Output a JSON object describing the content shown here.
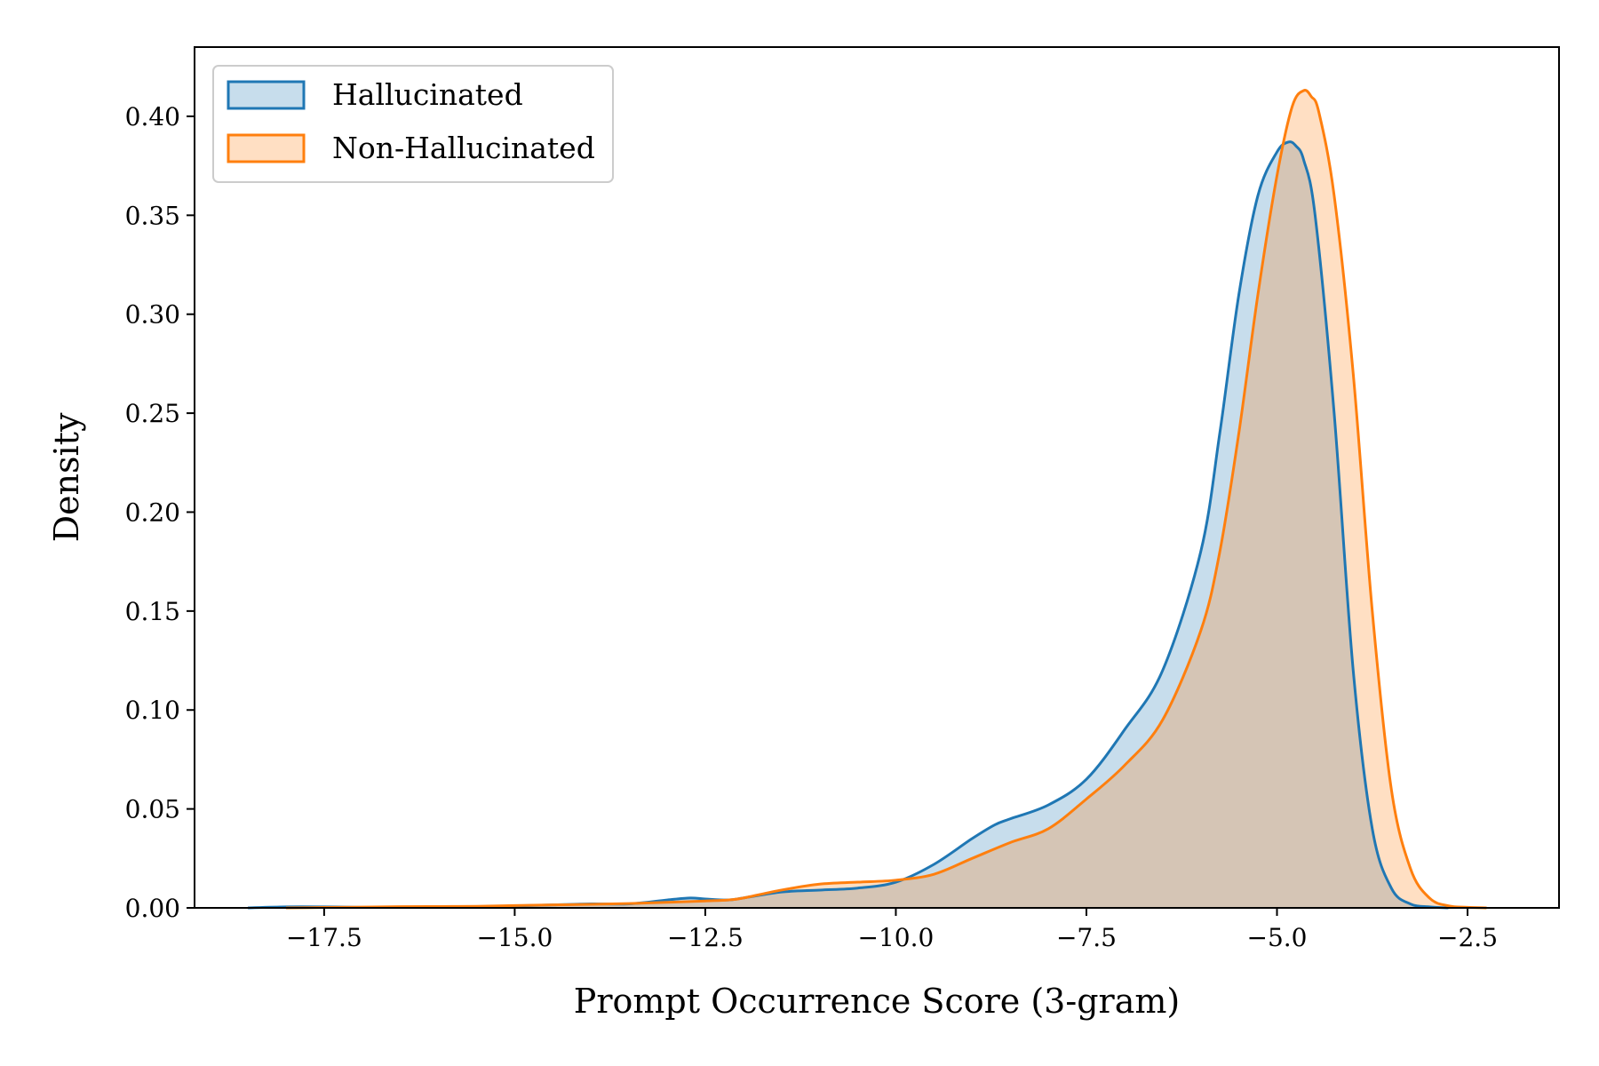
{
  "chart_data": {
    "type": "area",
    "title": "",
    "xlabel": "Prompt Occurrence Score (3-gram)",
    "ylabel": "Density",
    "xlim": [
      -19.2,
      -1.3
    ],
    "ylim": [
      0,
      0.435
    ],
    "xticks": [
      -17.5,
      -15.0,
      -12.5,
      -10.0,
      -7.5,
      -5.0,
      -2.5
    ],
    "xtick_labels": [
      "−17.5",
      "−15.0",
      "−12.5",
      "−10.0",
      "−7.5",
      "−5.0",
      "−2.5"
    ],
    "yticks": [
      0.0,
      0.05,
      0.1,
      0.15,
      0.2,
      0.25,
      0.3,
      0.35,
      0.4
    ],
    "ytick_labels": [
      "0.00",
      "0.05",
      "0.10",
      "0.15",
      "0.20",
      "0.25",
      "0.30",
      "0.35",
      "0.40"
    ],
    "grid": false,
    "legend_position": "top-left",
    "series": [
      {
        "name": "Hallucinated",
        "color": "#1f77b4",
        "fill": "#1f77b4",
        "x": [
          -18.5,
          -18.0,
          -17.5,
          -17.0,
          -16.5,
          -16.0,
          -15.5,
          -15.0,
          -14.5,
          -14.0,
          -13.5,
          -13.0,
          -12.7,
          -12.5,
          -12.2,
          -12.0,
          -11.5,
          -11.0,
          -10.5,
          -10.0,
          -9.5,
          -9.0,
          -8.7,
          -8.5,
          -8.0,
          -7.5,
          -7.0,
          -6.5,
          -6.0,
          -5.75,
          -5.5,
          -5.25,
          -5.0,
          -4.85,
          -4.75,
          -4.65,
          -4.5,
          -4.25,
          -4.0,
          -3.75,
          -3.5,
          -3.25,
          -3.0,
          -2.75
        ],
        "y": [
          0.0,
          0.0005,
          0.0005,
          0.0003,
          0.0002,
          0.0003,
          0.0005,
          0.001,
          0.0015,
          0.002,
          0.002,
          0.004,
          0.005,
          0.0045,
          0.004,
          0.005,
          0.008,
          0.009,
          0.01,
          0.013,
          0.022,
          0.035,
          0.042,
          0.045,
          0.052,
          0.065,
          0.09,
          0.12,
          0.18,
          0.24,
          0.31,
          0.36,
          0.382,
          0.387,
          0.385,
          0.378,
          0.35,
          0.25,
          0.12,
          0.04,
          0.01,
          0.002,
          0.0005,
          0.0
        ]
      },
      {
        "name": "Non-Hallucinated",
        "color": "#ff7f0e",
        "fill": "#ff7f0e",
        "x": [
          -18.0,
          -17.5,
          -17.0,
          -16.5,
          -16.0,
          -15.5,
          -15.0,
          -14.5,
          -14.0,
          -13.5,
          -13.0,
          -12.5,
          -12.2,
          -12.0,
          -11.5,
          -11.0,
          -10.5,
          -10.0,
          -9.5,
          -9.0,
          -8.5,
          -8.0,
          -7.5,
          -7.0,
          -6.5,
          -6.0,
          -5.75,
          -5.5,
          -5.25,
          -5.0,
          -4.8,
          -4.65,
          -4.55,
          -4.45,
          -4.25,
          -4.0,
          -3.75,
          -3.5,
          -3.25,
          -3.0,
          -2.75,
          -2.5,
          -2.25
        ],
        "y": [
          0.0,
          0.0002,
          0.0004,
          0.0006,
          0.0007,
          0.0008,
          0.0012,
          0.0015,
          0.0018,
          0.0022,
          0.0028,
          0.0035,
          0.004,
          0.005,
          0.009,
          0.012,
          0.013,
          0.014,
          0.017,
          0.025,
          0.033,
          0.04,
          0.055,
          0.072,
          0.095,
          0.14,
          0.18,
          0.24,
          0.31,
          0.37,
          0.405,
          0.413,
          0.41,
          0.402,
          0.36,
          0.27,
          0.15,
          0.06,
          0.02,
          0.005,
          0.001,
          0.0003,
          0.0
        ]
      }
    ]
  }
}
